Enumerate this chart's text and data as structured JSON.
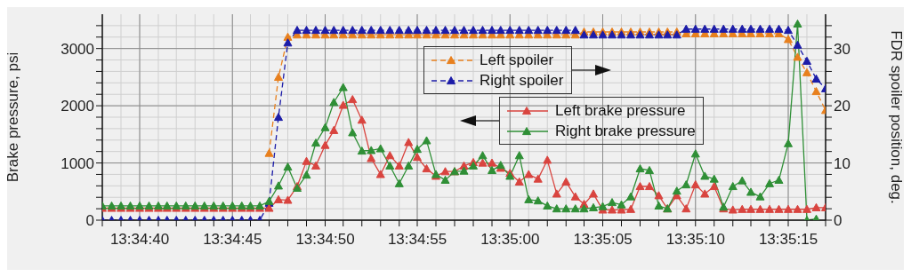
{
  "chart_data": {
    "type": "line",
    "ylabel": "Brake pressure, psi",
    "y2label": "FDR spoiler position, deg.",
    "x": [
      13.57722,
      13.57736,
      13.5775,
      13.57764,
      13.57778,
      13.57792,
      13.57806,
      13.57819,
      13.57833,
      13.57847,
      13.57861,
      13.57875,
      13.57889,
      13.57903,
      13.57917,
      13.57931,
      13.57944,
      13.57958,
      13.57972,
      13.57986,
      13.58,
      13.58014,
      13.58028,
      13.58042,
      13.58056,
      13.58069,
      13.58083,
      13.58097,
      13.58111,
      13.58125,
      13.58139,
      13.58153,
      13.58167,
      13.58181,
      13.58194,
      13.58208,
      13.58222,
      13.58236,
      13.5825,
      13.58264,
      13.58278,
      13.58292,
      13.58306,
      13.58319,
      13.58333,
      13.58347,
      13.58361,
      13.58375,
      13.58389,
      13.58403,
      13.58417,
      13.58431,
      13.58444,
      13.58458,
      13.58472,
      13.58486,
      13.585,
      13.58514,
      13.58528,
      13.58542,
      13.58556,
      13.58569,
      13.58583,
      13.58597,
      13.58611,
      13.58625,
      13.58639,
      13.58653,
      13.58667,
      13.58681,
      13.58694,
      13.58708,
      13.58722,
      13.58736,
      13.5875,
      13.58764,
      13.58778,
      13.58792,
      13.58806
    ],
    "series": [
      {
        "name": "Left spoiler",
        "color": "#e8801e",
        "axis": "y2",
        "line_style": "dashed",
        "values": [
          null,
          null,
          null,
          null,
          null,
          null,
          null,
          null,
          null,
          null,
          null,
          null,
          null,
          null,
          null,
          null,
          null,
          null,
          11.7,
          25,
          32,
          32.4,
          32.4,
          32.4,
          32.4,
          32.4,
          32.4,
          32.4,
          32.4,
          32.4,
          32.4,
          32.4,
          32.4,
          32.4,
          32.4,
          32.4,
          32.4,
          32.4,
          32.4,
          32.4,
          32.4,
          32.4,
          32.4,
          32.4,
          32.4,
          32.4,
          32.4,
          32.4,
          32.4,
          32.4,
          32.4,
          32.4,
          32.9,
          32.9,
          32.9,
          32.9,
          32.9,
          32.9,
          32.9,
          32.9,
          32.9,
          32.9,
          32.9,
          32.6,
          32.6,
          32.6,
          32.6,
          32.6,
          32.6,
          32.6,
          32.6,
          32.6,
          32.6,
          32.6,
          31.6,
          28.5,
          25.8,
          22.5,
          19.2
        ]
      },
      {
        "name": "Right spoiler",
        "color": "#1c1ca8",
        "axis": "y2",
        "line_style": "dashed",
        "values": [
          0,
          0,
          0,
          0,
          0,
          0,
          0,
          0,
          0,
          0,
          0,
          0,
          0,
          0,
          0,
          0,
          0,
          0,
          3,
          18,
          31,
          33.2,
          33.2,
          33.2,
          33.2,
          33.2,
          33.2,
          33.2,
          33.2,
          33.2,
          33.2,
          33.2,
          33.2,
          33.2,
          33.2,
          33.2,
          33.2,
          33.2,
          33.2,
          33.2,
          33.2,
          33.2,
          33.2,
          33.2,
          33.2,
          33.2,
          33.2,
          33.2,
          33.2,
          33.2,
          33.2,
          33.2,
          32.4,
          32.4,
          32.4,
          32.4,
          32.4,
          32.4,
          32.4,
          32.4,
          32.4,
          32.4,
          32.4,
          33.4,
          33.4,
          33.4,
          33.4,
          33.4,
          33.4,
          33.4,
          33.4,
          33.4,
          33.4,
          33.4,
          33.2,
          30.6,
          27.8,
          24.7,
          23
        ]
      },
      {
        "name": "Left brake pressure",
        "color": "#d9443f",
        "axis": "y",
        "line_style": "solid",
        "values": [
          210,
          210,
          210,
          210,
          210,
          210,
          210,
          210,
          210,
          210,
          210,
          210,
          210,
          210,
          210,
          210,
          210,
          210,
          210,
          360,
          350,
          590,
          1030,
          950,
          1310,
          1570,
          2010,
          2110,
          1750,
          1080,
          800,
          1130,
          950,
          1360,
          1100,
          900,
          770,
          850,
          850,
          950,
          1010,
          1000,
          1000,
          910,
          820,
          670,
          800,
          720,
          1050,
          460,
          670,
          410,
          280,
          460,
          180,
          180,
          180,
          190,
          590,
          590,
          430,
          200,
          430,
          200,
          620,
          460,
          590,
          200,
          180,
          190,
          190,
          190,
          190,
          190,
          190,
          190,
          190,
          220,
          220
        ]
      },
      {
        "name": "Right brake pressure",
        "color": "#2f8f36",
        "axis": "y",
        "line_style": "solid",
        "values": [
          250,
          250,
          250,
          250,
          250,
          250,
          250,
          250,
          250,
          250,
          250,
          250,
          250,
          250,
          250,
          250,
          250,
          250,
          330,
          600,
          930,
          560,
          790,
          1350,
          1620,
          2060,
          2320,
          1530,
          1210,
          1220,
          1250,
          950,
          640,
          950,
          1240,
          1390,
          800,
          700,
          850,
          860,
          950,
          1130,
          870,
          960,
          770,
          1130,
          360,
          340,
          250,
          200,
          200,
          200,
          200,
          220,
          240,
          310,
          270,
          410,
          900,
          870,
          250,
          200,
          510,
          620,
          1160,
          770,
          720,
          230,
          590,
          690,
          490,
          410,
          640,
          700,
          1340,
          3430,
          0,
          20,
          null
        ]
      }
    ],
    "marker": "triangle",
    "xlim": [
      13.57722,
      13.58806
    ],
    "xticks": [
      {
        "value": 13.57722,
        "label": null
      },
      {
        "value": 13.5775,
        "label": null
      },
      {
        "value": 13.57778,
        "label": "13:34:40"
      },
      {
        "value": 13.57806,
        "label": null
      },
      {
        "value": 13.57833,
        "label": null
      },
      {
        "value": 13.57861,
        "label": null
      },
      {
        "value": 13.57889,
        "label": null
      },
      {
        "value": 13.57917,
        "label": "13:34:45"
      },
      {
        "value": 13.57944,
        "label": null
      },
      {
        "value": 13.57972,
        "label": null
      },
      {
        "value": 13.58,
        "label": null
      },
      {
        "value": 13.58028,
        "label": null
      },
      {
        "value": 13.58056,
        "label": "13:34:50"
      },
      {
        "value": 13.58083,
        "label": null
      },
      {
        "value": 13.58111,
        "label": null
      },
      {
        "value": 13.58139,
        "label": null
      },
      {
        "value": 13.58167,
        "label": null
      },
      {
        "value": 13.58194,
        "label": "13:34:55"
      },
      {
        "value": 13.58222,
        "label": null
      },
      {
        "value": 13.5825,
        "label": null
      },
      {
        "value": 13.58278,
        "label": null
      },
      {
        "value": 13.58306,
        "label": null
      },
      {
        "value": 13.58333,
        "label": "13:35:00"
      },
      {
        "value": 13.58361,
        "label": null
      },
      {
        "value": 13.58389,
        "label": null
      },
      {
        "value": 13.58417,
        "label": null
      },
      {
        "value": 13.58444,
        "label": null
      },
      {
        "value": 13.58472,
        "label": "13:35:05"
      },
      {
        "value": 13.585,
        "label": null
      },
      {
        "value": 13.58528,
        "label": null
      },
      {
        "value": 13.58556,
        "label": null
      },
      {
        "value": 13.58583,
        "label": null
      },
      {
        "value": 13.58611,
        "label": "13:35:10"
      },
      {
        "value": 13.58639,
        "label": null
      },
      {
        "value": 13.58667,
        "label": null
      },
      {
        "value": 13.58694,
        "label": null
      },
      {
        "value": 13.58722,
        "label": null
      },
      {
        "value": 13.5875,
        "label": "13:35:15"
      },
      {
        "value": 13.58778,
        "label": null
      },
      {
        "value": 13.58806,
        "label": null
      }
    ],
    "ylim": [
      0,
      3600
    ],
    "yticks": [
      0,
      {
        "value": 200,
        "label": null
      },
      {
        "value": 400,
        "label": null
      },
      {
        "value": 600,
        "label": null
      },
      {
        "value": 800,
        "label": null
      },
      1000,
      {
        "value": 1200,
        "label": null
      },
      {
        "value": 1400,
        "label": null
      },
      {
        "value": 1600,
        "label": null
      },
      {
        "value": 1800,
        "label": null
      },
      2000,
      {
        "value": 2200,
        "label": null
      },
      {
        "value": 2400,
        "label": null
      },
      {
        "value": 2600,
        "label": null
      },
      {
        "value": 2800,
        "label": null
      },
      3000,
      {
        "value": 3200,
        "label": null
      },
      {
        "value": 3400,
        "label": null
      }
    ],
    "y2lim": [
      0,
      36
    ],
    "y2ticks": [
      0,
      {
        "value": 2,
        "label": null
      },
      {
        "value": 4,
        "label": null
      },
      {
        "value": 6,
        "label": null
      },
      {
        "value": 8,
        "label": null
      },
      10,
      {
        "value": 12,
        "label": null
      },
      {
        "value": 14,
        "label": null
      },
      {
        "value": 16,
        "label": null
      },
      {
        "value": 18,
        "label": null
      },
      20,
      {
        "value": 22,
        "label": null
      },
      {
        "value": 24,
        "label": null
      },
      {
        "value": 26,
        "label": null
      },
      {
        "value": 28,
        "label": null
      },
      30,
      {
        "value": 32,
        "label": null
      },
      {
        "value": 34,
        "label": null
      }
    ],
    "grid": true,
    "legend": "top"
  }
}
